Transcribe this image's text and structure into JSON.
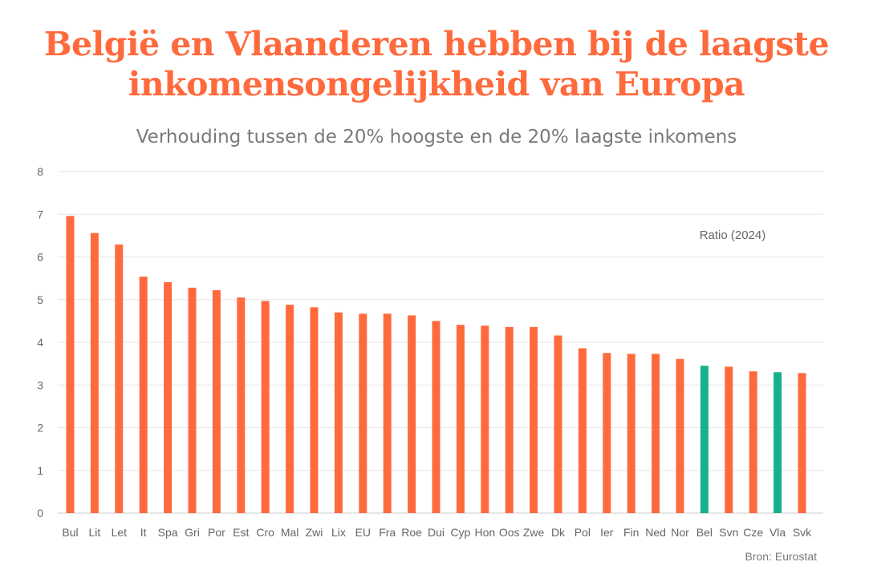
{
  "title_line1": "België en Vlaanderen hebben bij de laagste",
  "title_line2": "inkomensongelijkheid van Europa",
  "subtitle": "Verhouding tussen de 20% hoogste en de 20% laagste inkomens",
  "annotation": "Ratio (2024)",
  "source": "Bron: Eurostat",
  "colors": {
    "bar": "#ff6a3d",
    "highlight": "#15b08d",
    "title": "#ff6a3d",
    "grid": "#e6e6e6"
  },
  "chart_data": {
    "type": "bar",
    "categories": [
      "Bul",
      "Lit",
      "Let",
      "It",
      "Spa",
      "Gri",
      "Por",
      "Est",
      "Cro",
      "Mal",
      "Zwi",
      "Lix",
      "EU",
      "Fra",
      "Roe",
      "Dui",
      "Cyp",
      "Hon",
      "Oos",
      "Zwe",
      "Dk",
      "Pol",
      "Ier",
      "Fin",
      "Ned",
      "Nor",
      "Bel",
      "Svn",
      "Cze",
      "Vla",
      "Svk"
    ],
    "values": [
      6.96,
      6.56,
      6.29,
      5.54,
      5.41,
      5.28,
      5.22,
      5.05,
      4.97,
      4.88,
      4.82,
      4.7,
      4.67,
      4.67,
      4.63,
      4.5,
      4.41,
      4.39,
      4.36,
      4.36,
      4.16,
      3.86,
      3.75,
      3.73,
      3.73,
      3.61,
      3.45,
      3.43,
      3.32,
      3.3,
      3.28
    ],
    "highlighted": [
      "Bel",
      "Vla"
    ],
    "yticks": [
      0,
      1,
      2,
      3,
      4,
      5,
      6,
      7,
      8
    ],
    "ylim": [
      0,
      8
    ],
    "grid": true
  }
}
